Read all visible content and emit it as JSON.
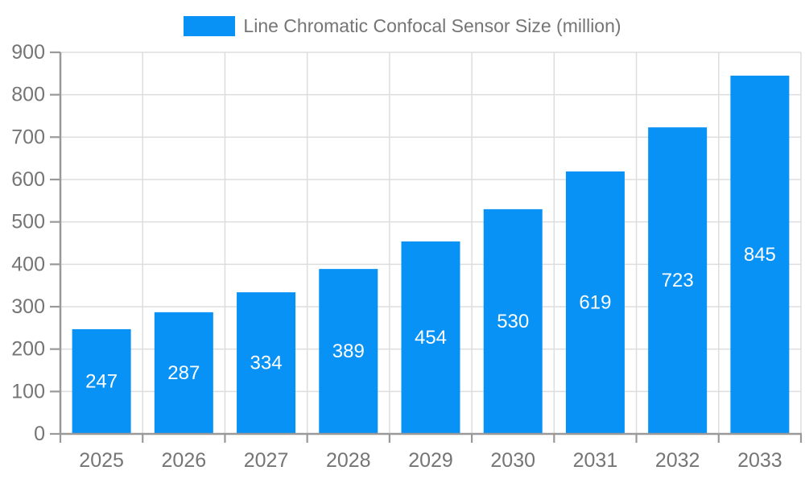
{
  "chart_data": {
    "type": "bar",
    "title": "Line Chromatic Confocal Sensor Size (million)",
    "categories": [
      "2025",
      "2026",
      "2027",
      "2028",
      "2029",
      "2030",
      "2031",
      "2032",
      "2033"
    ],
    "values": [
      247,
      287,
      334,
      389,
      454,
      530,
      619,
      723,
      845
    ],
    "xlabel": "",
    "ylabel": "",
    "ylim": [
      0,
      900
    ],
    "ytick_step": 100,
    "grid": true,
    "legend": {
      "position": "top-center",
      "labels": [
        "Line Chromatic Confocal Sensor Size (million)"
      ]
    },
    "colors": {
      "bar": "#0892f5",
      "axis": "#999999",
      "grid": "#dddddd",
      "tick_label": "#757575",
      "value_label": "#ffffff",
      "background": "#ffffff"
    }
  }
}
